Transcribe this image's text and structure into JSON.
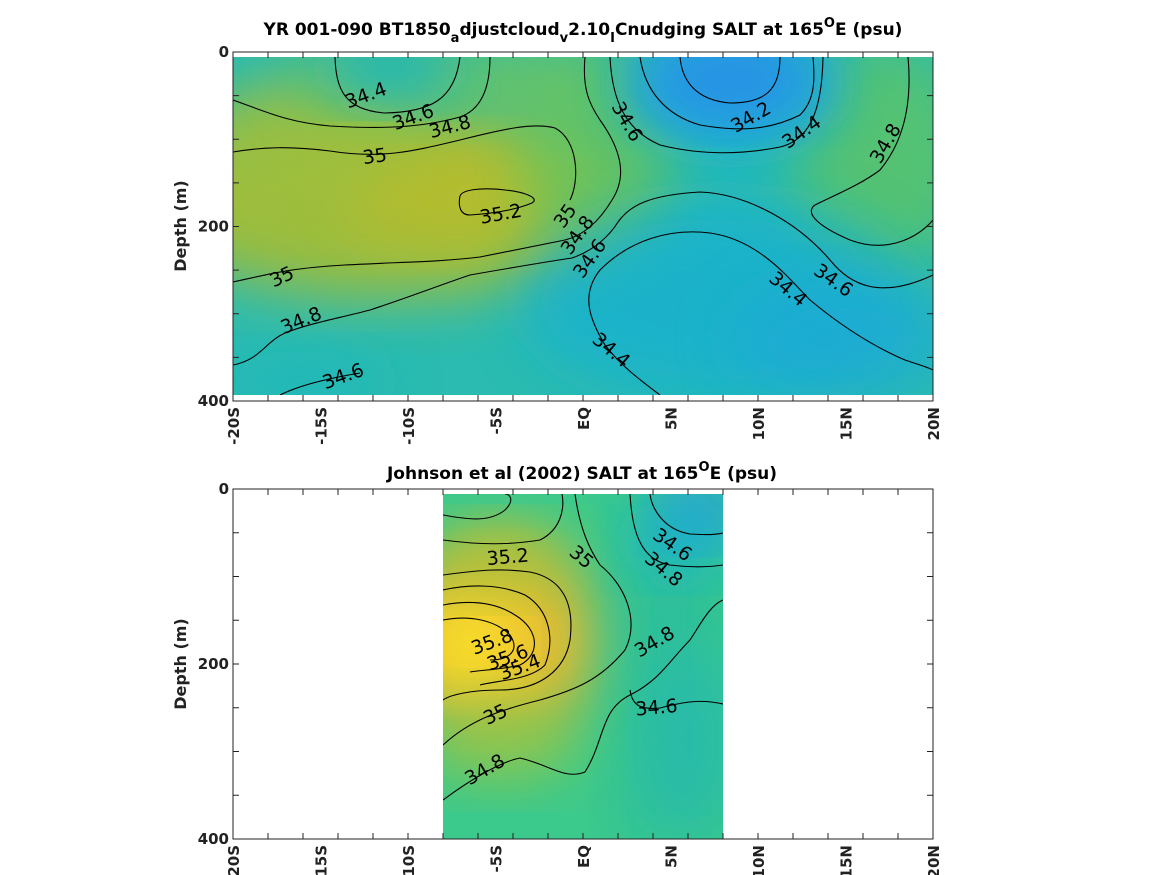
{
  "chart_data": [
    {
      "type": "heatmap",
      "title": "YR 001-090 BT1850adjustcloudv2.10ICnudging SALT at 165°E (psu)",
      "title_parts": {
        "prefix": "YR 001-090 BT1850",
        "sub1": "a",
        "mid1": "djustcloud",
        "sub2": "v",
        "mid2": "2.10",
        "sub3": "I",
        "mid3": "Cnudging SALT at 165",
        "sup": "O",
        "suffix": "E (psu)"
      },
      "ylabel": "Depth (m)",
      "xlim": [
        -20,
        20
      ],
      "ylim": [
        0,
        400
      ],
      "y_reversed": true,
      "xticks": [
        -20,
        -15,
        -10,
        -5,
        0,
        5,
        10,
        15,
        20
      ],
      "xtick_labels": [
        "-20S",
        "-15S",
        "-10S",
        "-5S",
        "EQ",
        "5N",
        "10N",
        "15N",
        "20N"
      ],
      "yticks": [
        0,
        200,
        400
      ],
      "ytick_labels": [
        "0",
        "200",
        "400"
      ],
      "data_extent": {
        "lon": [
          -20,
          20
        ],
        "depth": [
          5,
          395
        ]
      },
      "colormap": "parula",
      "color_range": [
        34.0,
        36.0
      ],
      "contour_levels": [
        34.2,
        34.4,
        34.6,
        34.8,
        35.0,
        35.2
      ],
      "contour_labels": [
        {
          "text": "34.4",
          "lon": -12.4,
          "depth": 50
        },
        {
          "text": "34.6",
          "lon": -9.7,
          "depth": 75
        },
        {
          "text": "34.8",
          "lon": -7.6,
          "depth": 86
        },
        {
          "text": "35",
          "lon": -11.9,
          "depth": 120
        },
        {
          "text": "35.2",
          "lon": -4.7,
          "depth": 186
        },
        {
          "text": "35",
          "lon": -1.0,
          "depth": 188
        },
        {
          "text": "34.8",
          "lon": -0.3,
          "depth": 210
        },
        {
          "text": "34.6",
          "lon": 0.4,
          "depth": 237
        },
        {
          "text": "34.6",
          "lon": 2.5,
          "depth": 80
        },
        {
          "text": "34.2",
          "lon": 9.6,
          "depth": 75
        },
        {
          "text": "34.4",
          "lon": 12.5,
          "depth": 92
        },
        {
          "text": "34.8",
          "lon": 17.3,
          "depth": 105
        },
        {
          "text": "34.6",
          "lon": 14.3,
          "depth": 262
        },
        {
          "text": "34.4",
          "lon": 11.7,
          "depth": 272
        },
        {
          "text": "35",
          "lon": -17.2,
          "depth": 258
        },
        {
          "text": "34.8",
          "lon": -16.1,
          "depth": 308
        },
        {
          "text": "34.6",
          "lon": -13.7,
          "depth": 372
        },
        {
          "text": "34.4",
          "lon": 1.6,
          "depth": 342
        }
      ],
      "field_points": [
        {
          "lon": -20,
          "depth": 20,
          "v": 34.7
        },
        {
          "lon": -20,
          "depth": 120,
          "v": 35.05
        },
        {
          "lon": -20,
          "depth": 200,
          "v": 35.15
        },
        {
          "lon": -20,
          "depth": 300,
          "v": 34.95
        },
        {
          "lon": -20,
          "depth": 390,
          "v": 34.65
        },
        {
          "lon": -13,
          "depth": 30,
          "v": 34.35
        },
        {
          "lon": -14,
          "depth": 100,
          "v": 34.9
        },
        {
          "lon": -12,
          "depth": 200,
          "v": 35.15
        },
        {
          "lon": -12,
          "depth": 300,
          "v": 34.85
        },
        {
          "lon": -12,
          "depth": 390,
          "v": 34.6
        },
        {
          "lon": -6,
          "depth": 20,
          "v": 34.6
        },
        {
          "lon": -5,
          "depth": 100,
          "v": 35.05
        },
        {
          "lon": -5,
          "depth": 185,
          "v": 35.22
        },
        {
          "lon": -4,
          "depth": 270,
          "v": 34.85
        },
        {
          "lon": -4,
          "depth": 380,
          "v": 34.6
        },
        {
          "lon": 0,
          "depth": 20,
          "v": 34.75
        },
        {
          "lon": 0,
          "depth": 120,
          "v": 34.95
        },
        {
          "lon": 0,
          "depth": 230,
          "v": 34.7
        },
        {
          "lon": 1,
          "depth": 330,
          "v": 34.45
        },
        {
          "lon": 7,
          "depth": 30,
          "v": 34.1
        },
        {
          "lon": 7,
          "depth": 100,
          "v": 34.45
        },
        {
          "lon": 7,
          "depth": 180,
          "v": 34.8
        },
        {
          "lon": 7,
          "depth": 280,
          "v": 34.45
        },
        {
          "lon": 7,
          "depth": 390,
          "v": 34.4
        },
        {
          "lon": 14,
          "depth": 20,
          "v": 34.45
        },
        {
          "lon": 14,
          "depth": 120,
          "v": 34.75
        },
        {
          "lon": 14,
          "depth": 200,
          "v": 34.75
        },
        {
          "lon": 12,
          "depth": 330,
          "v": 34.3
        },
        {
          "lon": 20,
          "depth": 20,
          "v": 34.75
        },
        {
          "lon": 20,
          "depth": 120,
          "v": 34.75
        },
        {
          "lon": 20,
          "depth": 200,
          "v": 34.7
        },
        {
          "lon": 20,
          "depth": 300,
          "v": 34.55
        },
        {
          "lon": 20,
          "depth": 390,
          "v": 34.4
        }
      ]
    },
    {
      "type": "heatmap",
      "title": "Johnson et al (2002) SALT at 165°E (psu)",
      "title_parts": {
        "prefix": "Johnson et al (2002) SALT at 165",
        "sup": "O",
        "suffix": "E (psu)"
      },
      "ylabel": "Depth (m)",
      "xlim": [
        -20,
        20
      ],
      "ylim": [
        0,
        400
      ],
      "y_reversed": true,
      "xticks": [
        -20,
        -15,
        -10,
        -5,
        0,
        5,
        10,
        15,
        20
      ],
      "xtick_labels": [
        "-20S",
        "-15S",
        "-10S",
        "-5S",
        "EQ",
        "5N",
        "10N",
        "15N",
        "20N"
      ],
      "yticks": [
        0,
        200,
        400
      ],
      "ytick_labels": [
        "0",
        "200",
        "400"
      ],
      "data_extent": {
        "lon": [
          -8,
          8
        ],
        "depth": [
          5,
          400
        ]
      },
      "colormap": "parula",
      "color_range": [
        34.0,
        36.0
      ],
      "contour_levels": [
        34.6,
        34.8,
        35.0,
        35.2,
        35.4,
        35.6,
        35.8
      ],
      "contour_labels": [
        {
          "text": "35.2",
          "lon": -4.3,
          "depth": 78
        },
        {
          "text": "35",
          "lon": -0.1,
          "depth": 78
        },
        {
          "text": "34.6",
          "lon": 5.1,
          "depth": 64
        },
        {
          "text": "34.8",
          "lon": 4.6,
          "depth": 92
        },
        {
          "text": "35.8",
          "lon": -5.2,
          "depth": 175
        },
        {
          "text": "35.6",
          "lon": -4.3,
          "depth": 193
        },
        {
          "text": "35.4",
          "lon": -3.6,
          "depth": 204
        },
        {
          "text": "34.8",
          "lon": 4.1,
          "depth": 175
        },
        {
          "text": "35",
          "lon": -5.0,
          "depth": 258
        },
        {
          "text": "34.6",
          "lon": 4.2,
          "depth": 250
        },
        {
          "text": "34.8",
          "lon": -5.6,
          "depth": 321
        }
      ],
      "field_points": [
        {
          "lon": -8,
          "depth": 10,
          "v": 34.8
        },
        {
          "lon": -8,
          "depth": 100,
          "v": 35.4
        },
        {
          "lon": -8,
          "depth": 170,
          "v": 35.95
        },
        {
          "lon": -8,
          "depth": 250,
          "v": 35.3
        },
        {
          "lon": -8,
          "depth": 390,
          "v": 34.75
        },
        {
          "lon": -4,
          "depth": 10,
          "v": 34.9
        },
        {
          "lon": -4,
          "depth": 100,
          "v": 35.3
        },
        {
          "lon": -4,
          "depth": 160,
          "v": 35.7
        },
        {
          "lon": -4,
          "depth": 250,
          "v": 35.1
        },
        {
          "lon": -4,
          "depth": 390,
          "v": 34.8
        },
        {
          "lon": 0,
          "depth": 10,
          "v": 34.9
        },
        {
          "lon": 0,
          "depth": 100,
          "v": 35.0
        },
        {
          "lon": 0,
          "depth": 200,
          "v": 34.95
        },
        {
          "lon": 0,
          "depth": 390,
          "v": 34.8
        },
        {
          "lon": 4,
          "depth": 10,
          "v": 34.5
        },
        {
          "lon": 4,
          "depth": 100,
          "v": 34.85
        },
        {
          "lon": 4,
          "depth": 200,
          "v": 34.75
        },
        {
          "lon": 4,
          "depth": 300,
          "v": 34.65
        },
        {
          "lon": 8,
          "depth": 10,
          "v": 34.25
        },
        {
          "lon": 8,
          "depth": 100,
          "v": 34.7
        },
        {
          "lon": 8,
          "depth": 200,
          "v": 34.65
        },
        {
          "lon": 8,
          "depth": 300,
          "v": 34.6
        },
        {
          "lon": 8,
          "depth": 390,
          "v": 34.6
        }
      ]
    }
  ]
}
